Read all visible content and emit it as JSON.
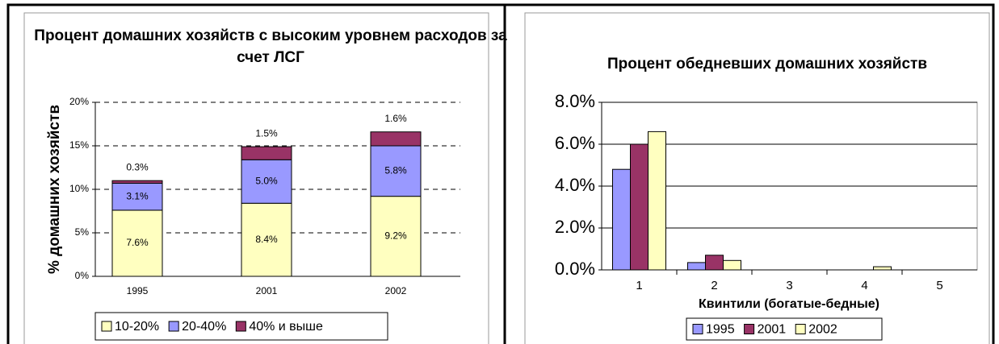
{
  "chart_data": [
    {
      "type": "bar",
      "stacked": true,
      "title": "Процент домашних хозяйств с высоким уровнем расходов за счет ЛСГ",
      "y_label": "% домашних хозяйств",
      "categories": [
        "1995",
        "2001",
        "2002"
      ],
      "series": [
        {
          "name": "10-20%",
          "color": "#ffffc0",
          "values": [
            7.6,
            8.4,
            9.2
          ],
          "value_labels": [
            "7.6%",
            "8.4%",
            "9.2%"
          ]
        },
        {
          "name": "20-40%",
          "color": "#9999ff",
          "values": [
            3.1,
            5.0,
            5.8
          ],
          "value_labels": [
            "3.1%",
            "5.0%",
            "5.8%"
          ]
        },
        {
          "name": "40% и выше",
          "color": "#993366",
          "values": [
            0.3,
            1.5,
            1.6
          ],
          "value_labels": [
            "0.3%",
            "1.5%",
            "1.6%"
          ]
        }
      ],
      "ylim": [
        0,
        20
      ],
      "yticks": [
        {
          "value": 0,
          "label": "0%"
        },
        {
          "value": 5,
          "label": "5%"
        },
        {
          "value": 10,
          "label": "10%"
        },
        {
          "value": 15,
          "label": "15%"
        },
        {
          "value": 20,
          "label": "20%"
        }
      ],
      "grid": true
    },
    {
      "type": "bar",
      "stacked": false,
      "title": "Процент обедневших домашних хозяйств",
      "x_label": "Квинтили (богатые-бедные)",
      "categories": [
        "1",
        "2",
        "3",
        "4",
        "5"
      ],
      "series": [
        {
          "name": "1995",
          "color": "#9999ff",
          "values": [
            4.8,
            0.35,
            0,
            0,
            0
          ]
        },
        {
          "name": "2001",
          "color": "#993366",
          "values": [
            6.0,
            0.7,
            0,
            0,
            0
          ]
        },
        {
          "name": "2002",
          "color": "#ffffc0",
          "values": [
            6.6,
            0.45,
            0,
            0.15,
            0
          ]
        }
      ],
      "ylim": [
        0,
        8
      ],
      "yticks": [
        {
          "value": 0,
          "label": "0.0%"
        },
        {
          "value": 2,
          "label": "2.0%"
        },
        {
          "value": 4,
          "label": "4.0%"
        },
        {
          "value": 6,
          "label": "6.0%"
        },
        {
          "value": 8,
          "label": "8.0%"
        }
      ],
      "grid": true
    }
  ]
}
